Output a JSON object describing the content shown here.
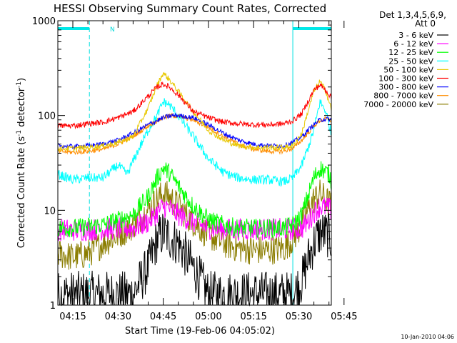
{
  "chart_data": {
    "type": "line",
    "title": "HESSI Observing Summary Count Rates, Corrected",
    "xlabel": "Start Time (19-Feb-06 04:05:02)",
    "ylabel_main": "Corrected Count Rate (s",
    "ylabel_sup1": "-1",
    "ylabel_mid": " detector",
    "ylabel_sup2": "-1",
    "ylabel_end": ")",
    "y_scale": "log",
    "ylim": [
      1,
      1000
    ],
    "x_range_minutes": [
      0,
      40
    ],
    "x_ticks": [
      {
        "label": "04:15",
        "min": 10
      },
      {
        "label": "04:30",
        "min": 25
      },
      {
        "label": "04:45",
        "min": 40
      },
      {
        "label": "05:00",
        "min": 55
      },
      {
        "label": "05:15",
        "min": 70
      },
      {
        "label": "05:30",
        "min": 85
      },
      {
        "label": "05:45",
        "min": 100
      }
    ],
    "y_ticks": [
      {
        "label": "1",
        "value": 1
      },
      {
        "label": "10",
        "value": 10
      },
      {
        "label": "100",
        "value": 100
      },
      {
        "label": "1000",
        "value": 1000
      }
    ],
    "legend_title1": "Det 1,3,4,5,6,9,",
    "legend_title2": "Att 0",
    "footer_date": "10-Jan-2010 04:06",
    "annotation_n": "N",
    "night_bands": [
      {
        "start_min": -5,
        "end_min": 15.5
      },
      {
        "start_min": 83,
        "end_min": 97.5
      }
    ],
    "series": [
      {
        "name": "3 - 6 keV",
        "color": "#000000",
        "x": [
          -5,
          0,
          10,
          20,
          30,
          35,
          38,
          40,
          42,
          45,
          50,
          55,
          60,
          65,
          70,
          75,
          80,
          83,
          86,
          88,
          90,
          92,
          95,
          97
        ],
        "y": [
          2.5,
          1.3,
          1.3,
          1.3,
          1.3,
          2.5,
          5.0,
          5.8,
          5.2,
          4.5,
          2.5,
          1.3,
          1.3,
          1.3,
          1.3,
          1.3,
          1.3,
          1.3,
          1.8,
          3.0,
          4.5,
          5.8,
          5.5,
          4.0
        ]
      },
      {
        "name": "6 - 12 keV",
        "color": "#ff00ff",
        "x": [
          -5,
          0,
          10,
          20,
          30,
          35,
          38,
          40,
          42,
          45,
          50,
          55,
          60,
          65,
          70,
          75,
          80,
          83,
          86,
          88,
          90,
          92,
          95,
          97
        ],
        "y": [
          6.5,
          6.3,
          6.2,
          6.3,
          6.5,
          7.5,
          9.5,
          11.0,
          10.5,
          9.0,
          7.5,
          6.5,
          6.3,
          6.3,
          6.3,
          6.3,
          6.3,
          6.3,
          6.5,
          7.5,
          9.5,
          11.0,
          10.5,
          8.5
        ]
      },
      {
        "name": "12 - 25 keV",
        "color": "#00ff00",
        "x": [
          -5,
          0,
          10,
          20,
          30,
          35,
          38,
          40,
          42,
          45,
          50,
          55,
          60,
          65,
          70,
          75,
          80,
          83,
          86,
          88,
          90,
          92,
          95,
          97
        ],
        "y": [
          7.5,
          6.5,
          6.5,
          7.0,
          9.0,
          14.0,
          22.0,
          28.0,
          25.0,
          18.0,
          11.0,
          8.0,
          7.0,
          6.5,
          6.5,
          6.5,
          6.5,
          7.0,
          9.0,
          14.0,
          22.0,
          28.0,
          24.0,
          16.0
        ]
      },
      {
        "name": "25 - 50 keV",
        "color": "#00ffff",
        "x": [
          -5,
          0,
          5,
          10,
          15,
          20,
          25,
          28,
          32,
          35,
          38,
          40,
          42,
          45,
          50,
          55,
          60,
          65,
          70,
          75,
          80,
          83,
          86,
          88,
          90,
          92,
          94,
          96,
          97
        ],
        "y": [
          28,
          22,
          24,
          21,
          22,
          22,
          30,
          24,
          45,
          70,
          100,
          140,
          130,
          100,
          60,
          35,
          25,
          22,
          21,
          21,
          20,
          22,
          30,
          45,
          70,
          140,
          110,
          60,
          40
        ]
      },
      {
        "name": "50 - 100 keV",
        "color": "#e8c800",
        "x": [
          -5,
          0,
          5,
          10,
          15,
          20,
          25,
          30,
          35,
          38,
          40,
          42,
          45,
          50,
          55,
          60,
          65,
          70,
          75,
          80,
          83,
          86,
          88,
          90,
          92,
          94,
          96,
          97
        ],
        "y": [
          50,
          46,
          45,
          45,
          46,
          48,
          52,
          60,
          120,
          210,
          280,
          240,
          180,
          110,
          70,
          55,
          48,
          46,
          46,
          46,
          48,
          65,
          110,
          180,
          230,
          180,
          110,
          80
        ]
      },
      {
        "name": "100 - 300 keV",
        "color": "#ff0000",
        "x": [
          -5,
          0,
          5,
          10,
          15,
          20,
          25,
          30,
          35,
          38,
          40,
          42,
          45,
          50,
          55,
          60,
          65,
          70,
          75,
          80,
          83,
          86,
          88,
          90,
          92,
          94,
          96,
          97
        ],
        "y": [
          130,
          90,
          78,
          78,
          82,
          85,
          95,
          110,
          160,
          200,
          215,
          200,
          165,
          110,
          95,
          85,
          82,
          80,
          80,
          82,
          88,
          105,
          140,
          185,
          210,
          185,
          150,
          140
        ]
      },
      {
        "name": "300 - 800 keV",
        "color": "#0000ff",
        "x": [
          -5,
          0,
          5,
          10,
          15,
          20,
          25,
          30,
          35,
          40,
          43,
          45,
          50,
          55,
          60,
          65,
          70,
          75,
          80,
          83,
          86,
          88,
          90,
          92,
          94,
          96,
          97
        ],
        "y": [
          55,
          50,
          48,
          47,
          48,
          50,
          55,
          65,
          80,
          95,
          100,
          100,
          95,
          80,
          65,
          55,
          50,
          48,
          48,
          52,
          60,
          70,
          80,
          90,
          92,
          90,
          85
        ]
      },
      {
        "name": "800 - 7000 keV",
        "color": "#ff8c00",
        "x": [
          -5,
          0,
          5,
          10,
          15,
          20,
          25,
          30,
          35,
          40,
          43,
          45,
          50,
          55,
          60,
          65,
          70,
          75,
          80,
          83,
          86,
          88,
          90,
          92,
          94,
          96,
          97
        ],
        "y": [
          48,
          44,
          42,
          41,
          42,
          44,
          50,
          60,
          78,
          95,
          100,
          98,
          90,
          75,
          60,
          50,
          44,
          42,
          42,
          45,
          55,
          65,
          78,
          88,
          92,
          88,
          82
        ]
      },
      {
        "name": "7000 - 20000 keV",
        "color": "#8b7d00",
        "x": [
          -5,
          0,
          5,
          10,
          15,
          20,
          25,
          30,
          35,
          38,
          40,
          42,
          45,
          50,
          55,
          60,
          65,
          70,
          75,
          80,
          83,
          86,
          88,
          90,
          92,
          94,
          96,
          97
        ],
        "y": [
          5.0,
          4.5,
          3.5,
          3.2,
          3.5,
          4.5,
          5.5,
          7.0,
          10.0,
          13.0,
          15.0,
          14.0,
          11.0,
          7.5,
          5.5,
          4.5,
          4.0,
          3.8,
          3.8,
          4.0,
          5.0,
          7.0,
          10.0,
          13.0,
          15.0,
          13.0,
          11.0,
          9.0
        ]
      }
    ]
  }
}
